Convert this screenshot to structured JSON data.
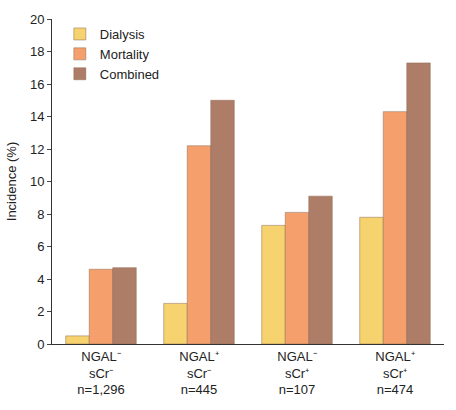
{
  "chart_data": {
    "type": "bar",
    "y_label": "Incidence (%)",
    "categories": [
      "NGAL⁻\nsCr⁻\nn=1,296",
      "NGAL⁺\nsCr⁻\nn=445",
      "NGAL⁻\nsCr⁺\nn=107",
      "NGAL⁺\nsCr⁺\nn=474"
    ],
    "series": [
      {
        "name": "Dialysis",
        "color": "#f6d36e",
        "values": [
          0.5,
          2.5,
          7.3,
          7.8
        ]
      },
      {
        "name": "Mortality",
        "color": "#f5a06c",
        "values": [
          4.6,
          12.2,
          8.1,
          14.3
        ]
      },
      {
        "name": "Combined",
        "color": "#ae7d68",
        "values": [
          4.7,
          15.0,
          9.1,
          17.3
        ]
      }
    ],
    "ylim": [
      0,
      20
    ],
    "yticks": [
      0,
      2,
      4,
      6,
      8,
      10,
      12,
      14,
      16,
      18,
      20
    ],
    "grid": false,
    "legend": "upper left"
  }
}
